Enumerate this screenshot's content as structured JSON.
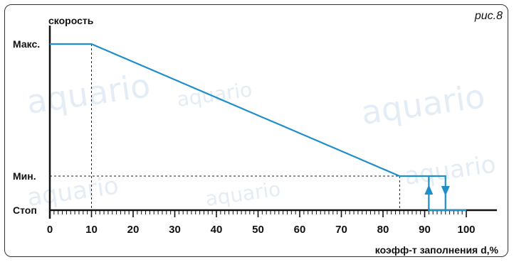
{
  "figure_label": "рис.8",
  "chart_data": {
    "type": "line",
    "ylabel": "скорость",
    "xlabel": "коэфф-т заполнения d,%",
    "xlim": [
      0,
      100
    ],
    "x_ticks": [
      0,
      10,
      20,
      30,
      40,
      50,
      60,
      70,
      80,
      90,
      100
    ],
    "y_levels": [
      {
        "key": "max",
        "label": "Макс."
      },
      {
        "key": "min",
        "label": "Мин."
      },
      {
        "key": "stop",
        "label": "Стоп"
      }
    ],
    "series": [
      {
        "color": "#1e8fc8",
        "points": [
          [
            0,
            "max"
          ],
          [
            10,
            "max"
          ],
          [
            84,
            "min"
          ],
          [
            95,
            "min"
          ],
          [
            95,
            "stop"
          ],
          [
            91,
            "stop"
          ],
          [
            91,
            "min"
          ]
        ]
      }
    ],
    "guides": [
      {
        "from": [
          10,
          "max"
        ],
        "to": [
          10,
          "stop"
        ]
      },
      {
        "from": [
          0,
          "min"
        ],
        "to": [
          84,
          "min"
        ]
      },
      {
        "from": [
          84,
          "min"
        ],
        "to": [
          84,
          "stop"
        ]
      }
    ],
    "hysteresis_arrows": [
      {
        "x": 91,
        "direction": "up"
      },
      {
        "x": 95,
        "direction": "down"
      }
    ]
  },
  "watermark": "aquario"
}
